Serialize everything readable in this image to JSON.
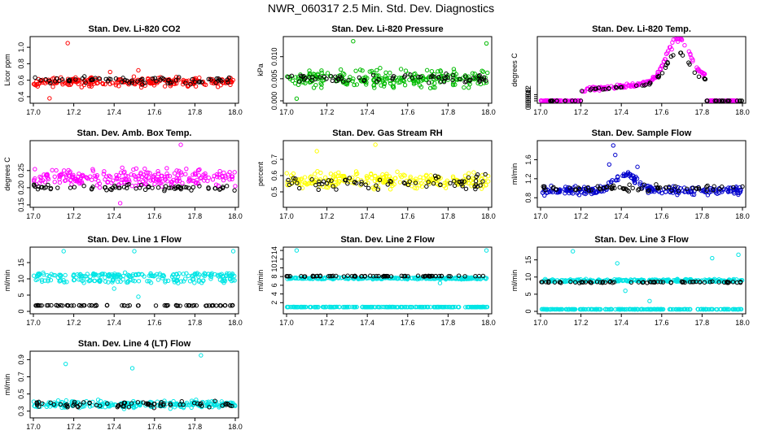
{
  "title": "NWR_060317  2.5 Min. Std. Dev. Diagnostics",
  "colors": {
    "black_series": "#000000"
  },
  "chart_data": [
    {
      "type": "scatter",
      "title": "Stan. Dev. Li-820 CO2",
      "ylabel": "Licor ppm",
      "color": "#ff0000",
      "xlim": [
        17.0,
        18.0
      ],
      "ylim": [
        0.35,
        1.1
      ],
      "xticks": [
        "17.0",
        "17.2",
        "17.4",
        "17.6",
        "17.8",
        "18.0"
      ],
      "yticks": [
        "0.4",
        "0.6",
        "0.8",
        "1.0"
      ],
      "ytick_values": [
        0.4,
        0.6,
        0.8,
        1.0
      ],
      "series": [
        {
          "name": "colored",
          "base": 0.58,
          "spread": 0.08,
          "outliers": [
            [
              17.17,
              1.05
            ],
            [
              17.38,
              0.7
            ],
            [
              17.52,
              0.72
            ],
            [
              17.08,
              0.38
            ]
          ]
        },
        {
          "name": "black",
          "base": 0.6,
          "spread": 0.06
        }
      ]
    },
    {
      "type": "scatter",
      "title": "Stan. Dev. Li-820 Pressure",
      "ylabel": "kPa",
      "color": "#00bb00",
      "xlim": [
        17.0,
        18.0
      ],
      "ylim": [
        0.0,
        0.014
      ],
      "xticks": [
        "17.0",
        "17.2",
        "17.4",
        "17.6",
        "17.8",
        "18.0"
      ],
      "yticks": [
        "0.000",
        "0.005",
        "0.010"
      ],
      "ytick_values": [
        0.0,
        0.005,
        0.01
      ],
      "series": [
        {
          "name": "colored",
          "base": 0.005,
          "spread": 0.0028,
          "outliers": [
            [
              17.33,
              0.0135
            ],
            [
              17.99,
              0.013
            ],
            [
              17.05,
              0.0005
            ]
          ]
        },
        {
          "name": "black",
          "base": 0.005,
          "spread": 0.0015
        }
      ]
    },
    {
      "type": "scatter",
      "title": "Stan. Dev. Li-820 Temp.",
      "ylabel": "degrees C",
      "color": "#ff00ff",
      "xlim": [
        17.0,
        18.0
      ],
      "ylim": [
        0.0,
        0.12
      ],
      "xticks": [
        "17.0",
        "17.2",
        "17.4",
        "17.6",
        "17.8",
        "18.0"
      ],
      "yticks": [
        "0.000",
        "0.004",
        "0.008",
        "0.012"
      ],
      "ytick_values": [
        0.0,
        0.004,
        0.008,
        0.012
      ],
      "series": [
        {
          "name": "colored",
          "base": 0.03,
          "spread": 0.01,
          "outliers": [
            [
              17.7,
              0.118
            ],
            [
              17.68,
              0.115
            ],
            [
              17.65,
              0.1
            ]
          ]
        },
        {
          "name": "black",
          "base": 0.03,
          "spread": 0.01
        }
      ]
    },
    {
      "type": "scatter",
      "title": "Stan. Dev. Amb. Box Temp.",
      "ylabel": "degrees C",
      "color": "#ff00ff",
      "xlim": [
        17.0,
        18.0
      ],
      "ylim": [
        0.15,
        0.33
      ],
      "xticks": [
        "17.0",
        "17.2",
        "17.4",
        "17.6",
        "17.8",
        "18.0"
      ],
      "yticks": [
        "0.15",
        "0.20",
        "0.25"
      ],
      "ytick_values": [
        0.15,
        0.2,
        0.25
      ],
      "series": [
        {
          "name": "colored",
          "base": 0.23,
          "spread": 0.035,
          "outliers": [
            [
              17.73,
              0.325
            ],
            [
              17.43,
              0.155
            ]
          ]
        },
        {
          "name": "black",
          "base": 0.2,
          "spread": 0.012
        }
      ]
    },
    {
      "type": "scatter",
      "title": "Stan. Dev. Gas Stream RH",
      "ylabel": "percent",
      "color": "#ffff00",
      "xlim": [
        17.0,
        18.0
      ],
      "ylim": [
        0.42,
        0.8
      ],
      "xticks": [
        "17.0",
        "17.2",
        "17.4",
        "17.6",
        "17.8",
        "18.0"
      ],
      "yticks": [
        "0.5",
        "0.6",
        "0.7"
      ],
      "ytick_values": [
        0.5,
        0.6,
        0.7
      ],
      "series": [
        {
          "name": "colored",
          "base": 0.57,
          "spread": 0.07,
          "outliers": [
            [
              17.44,
              0.79
            ],
            [
              17.15,
              0.75
            ]
          ]
        },
        {
          "name": "black",
          "base": 0.56,
          "spread": 0.06
        }
      ]
    },
    {
      "type": "scatter",
      "title": "Stan. Dev. Sample Flow",
      "ylabel": "ml/min",
      "color": "#0000cc",
      "xlim": [
        17.0,
        18.0
      ],
      "ylim": [
        0.65,
        1.95
      ],
      "xticks": [
        "17.0",
        "17.2",
        "17.4",
        "17.6",
        "17.8",
        "18.0"
      ],
      "yticks": [
        "0.8",
        "1.2",
        "1.6"
      ],
      "ytick_values": [
        0.8,
        1.2,
        1.6
      ],
      "series": [
        {
          "name": "colored",
          "base": 0.95,
          "spread": 0.12,
          "outliers": [
            [
              17.36,
              1.9
            ],
            [
              17.37,
              1.7
            ],
            [
              17.34,
              1.5
            ],
            [
              17.48,
              1.45
            ]
          ]
        },
        {
          "name": "black",
          "base": 1.0,
          "spread": 0.1
        }
      ]
    },
    {
      "type": "scatter",
      "title": "Stan. Dev. Line 1 Flow",
      "ylabel": "ml/min",
      "color": "#00e5e5",
      "xlim": [
        17.0,
        18.0
      ],
      "ylim": [
        0,
        19
      ],
      "xticks": [
        "17.0",
        "17.2",
        "17.4",
        "17.6",
        "17.8",
        "18.0"
      ],
      "yticks": [
        "0",
        "5",
        "10",
        "15"
      ],
      "ytick_values": [
        0,
        5,
        10,
        15
      ],
      "series": [
        {
          "name": "colored",
          "base": 11.2,
          "spread": 1.0,
          "outliers": [
            [
              17.15,
              18.5
            ],
            [
              17.5,
              18.5
            ],
            [
              17.99,
              18.5
            ],
            [
              17.4,
              7
            ],
            [
              17.52,
              4.5
            ]
          ]
        },
        {
          "name": "black",
          "base": 1.8,
          "spread": 0.15
        }
      ]
    },
    {
      "type": "scatter",
      "title": "Stan. Dev. Line 2 Flow",
      "ylabel": "ml/min",
      "color": "#00e5e5",
      "xlim": [
        17.0,
        18.0
      ],
      "ylim": [
        0.0,
        14.2
      ],
      "xticks": [
        "17.0",
        "17.2",
        "17.4",
        "17.6",
        "17.8",
        "18.0"
      ],
      "yticks": [
        "2",
        "4",
        "6",
        "8",
        "10",
        "12",
        "14"
      ],
      "ytick_values": [
        2,
        4,
        6,
        8,
        10,
        12,
        14
      ],
      "series": [
        {
          "name": "colored",
          "base": 7.6,
          "spread": 0.3,
          "outliers": [
            [
              17.05,
              14
            ],
            [
              17.99,
              14
            ],
            [
              17.76,
              6.5
            ]
          ]
        },
        {
          "name": "black",
          "base": 8.1,
          "spread": 0.15
        },
        {
          "name": "low-band",
          "base": 1.0,
          "spread": 0.05
        }
      ]
    },
    {
      "type": "scatter",
      "title": "Stan. Dev. Line 3 Flow",
      "ylabel": "ml/min",
      "color": "#00e5e5",
      "xlim": [
        17.0,
        18.0
      ],
      "ylim": [
        0,
        18
      ],
      "xticks": [
        "17.0",
        "17.2",
        "17.4",
        "17.6",
        "17.8",
        "18.0"
      ],
      "yticks": [
        "0",
        "5",
        "10",
        "15"
      ],
      "ytick_values": [
        0,
        5,
        10,
        15
      ],
      "series": [
        {
          "name": "colored",
          "base": 9.0,
          "spread": 0.6,
          "outliers": [
            [
              17.16,
              17.5
            ],
            [
              17.98,
              16.5
            ],
            [
              17.85,
              15.5
            ],
            [
              17.38,
              14
            ],
            [
              17.42,
              6
            ],
            [
              17.54,
              3
            ]
          ]
        },
        {
          "name": "black",
          "base": 8.5,
          "spread": 0.3
        },
        {
          "name": "low-band",
          "base": 0.6,
          "spread": 0.05
        }
      ]
    },
    {
      "type": "scatter",
      "title": "Stan. Dev. Line 4 (LT) Flow",
      "ylabel": "ml/min",
      "color": "#00e5e5",
      "xlim": [
        17.0,
        18.0
      ],
      "ylim": [
        0.25,
        0.97
      ],
      "xticks": [
        "17.0",
        "17.2",
        "17.4",
        "17.6",
        "17.8",
        "18.0"
      ],
      "yticks": [
        "0.3",
        "0.5",
        "0.7",
        "0.9"
      ],
      "ytick_values": [
        0.3,
        0.5,
        0.7,
        0.9
      ],
      "series": [
        {
          "name": "colored",
          "base": 0.38,
          "spread": 0.06,
          "outliers": [
            [
              17.83,
              0.95
            ],
            [
              17.16,
              0.85
            ],
            [
              17.49,
              0.8
            ]
          ]
        },
        {
          "name": "black",
          "base": 0.38,
          "spread": 0.05
        }
      ]
    }
  ]
}
